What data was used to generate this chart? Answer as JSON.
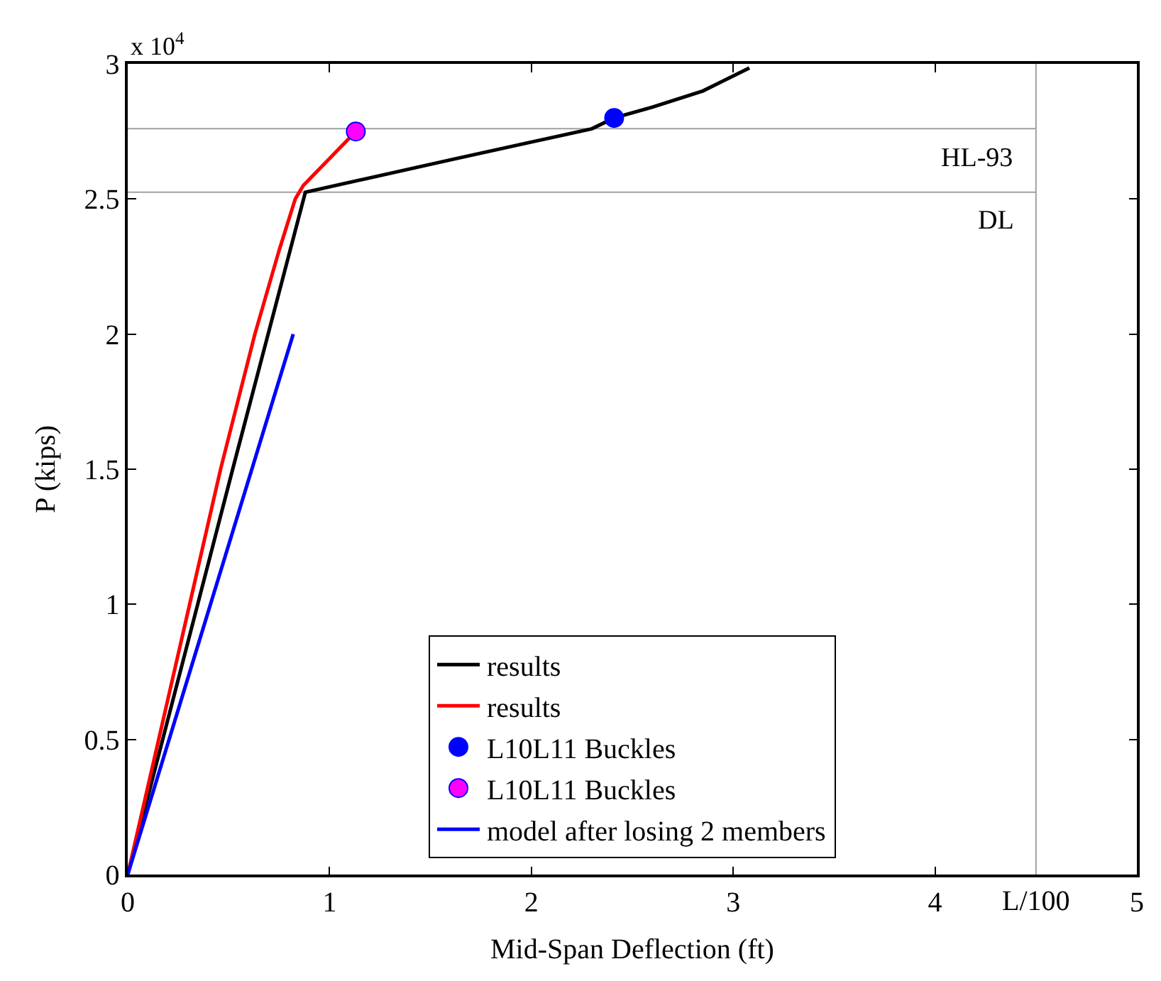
{
  "chart_data": {
    "type": "line",
    "xlabel": "Mid-Span Deflection (ft)",
    "ylabel": "P (kips)",
    "xlim": [
      0,
      5
    ],
    "xticks": [
      0,
      1,
      2,
      3,
      4,
      5
    ],
    "ylim": [
      0,
      3
    ],
    "yticks": [
      0,
      0.5,
      1,
      1.5,
      2,
      2.5,
      3
    ],
    "grid": false,
    "legend": "bottom",
    "series": [
      {
        "name": "results",
        "color": "#000000",
        "x": [
          0,
          0.52,
          0.88,
          1.6,
          2.3,
          2.41,
          2.6,
          2.85,
          3.08
        ],
        "values": [
          0,
          1.5,
          2.525,
          2.645,
          2.76,
          2.8,
          2.84,
          2.9,
          2.985
        ]
      },
      {
        "name": "results",
        "color": "#ff0000",
        "x": [
          0,
          0.46,
          0.63,
          0.75,
          0.83,
          0.87,
          1.13
        ],
        "values": [
          0,
          1.5,
          2.0,
          2.31,
          2.5,
          2.55,
          2.75
        ]
      },
      {
        "name": "L10L11 Buckles",
        "type": "scatter",
        "marker": "circle",
        "color": "#0000ff",
        "x": [
          2.41
        ],
        "values": [
          2.8
        ]
      },
      {
        "name": "L10L11 Buckles",
        "type": "scatter",
        "marker": "circle",
        "color": "#ff00ff",
        "x": [
          1.13
        ],
        "values": [
          2.75
        ]
      },
      {
        "name": "model after losing 2 members",
        "color": "#0000ff",
        "x": [
          0,
          0.82
        ],
        "values": [
          0,
          2.0
        ]
      }
    ],
    "ref_lines": [
      {
        "axis": "y",
        "value": 2.76,
        "label": "HL-93",
        "color": "#a0a0a0"
      },
      {
        "axis": "y",
        "value": 2.525,
        "label": "DL",
        "color": "#a0a0a0"
      },
      {
        "axis": "x",
        "value": 4.5,
        "label": "L/100",
        "color": "#a0a0a0"
      }
    ],
    "annotations": [
      "x 10$^{4}$"
    ]
  }
}
